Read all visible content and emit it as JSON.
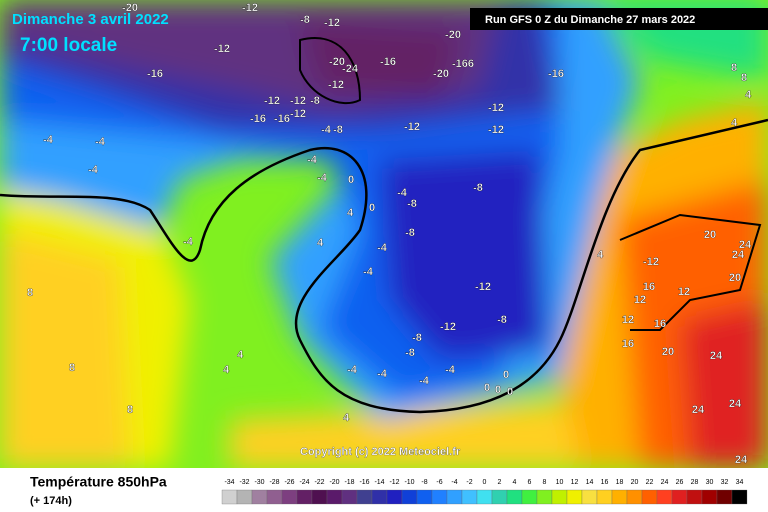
{
  "header": {
    "date": "Dimanche 3 avril 2022",
    "time": "7:00 locale",
    "run": "Run GFS 0 Z du Dimanche 27 mars 2022"
  },
  "copyright": "Copyright (c) 2022 Meteociel.fr",
  "footer": {
    "title": "Température 850hPa",
    "lead": "(+ 174h)"
  },
  "map_labels": [
    "-20",
    "-12",
    "-8",
    "-12",
    "-16",
    "-12",
    "-20",
    "-24",
    "-12",
    "-16",
    "-20",
    "-166",
    "-16",
    "-20",
    "-12",
    "-12",
    "-8",
    "-12",
    "-16",
    "-16",
    "-12",
    "-12",
    "-12",
    "-4",
    "-8",
    "-4",
    "-4",
    "-4",
    "-4",
    "-4",
    "-4",
    "0",
    "4",
    "0",
    "4",
    "8",
    "8",
    "4",
    "4",
    "8",
    "4",
    "-4",
    "-8",
    "-8",
    "-4",
    "-4",
    "-8",
    "-12",
    "-12",
    "-8",
    "-8",
    "-8",
    "-4",
    "-4",
    "-4",
    "-4",
    "0",
    "0",
    "0",
    "0",
    "4",
    "-12",
    "16",
    "12",
    "12",
    "12",
    "16",
    "16",
    "20",
    "24",
    "24",
    "20",
    "20",
    "24",
    "24",
    "24",
    "24",
    "8",
    "8",
    "4",
    "4"
  ],
  "scale": {
    "ticks": [
      -34,
      -32,
      -30,
      -28,
      -26,
      -24,
      -22,
      -20,
      -18,
      -16,
      -14,
      -12,
      -10,
      -8,
      -6,
      -4,
      -2,
      0,
      2,
      4,
      6,
      8,
      10,
      12,
      14,
      16,
      18,
      20,
      22,
      24,
      26,
      28,
      30,
      32,
      34
    ],
    "colors": [
      "#d0d0d0",
      "#b4b4b4",
      "#a080a0",
      "#905f90",
      "#7d3f80",
      "#632065",
      "#4f1050",
      "#5a1a6a",
      "#603080",
      "#404090",
      "#3030a8",
      "#2020c0",
      "#1040d8",
      "#1060f0",
      "#2080ff",
      "#30a0ff",
      "#40c0ff",
      "#40e0f0",
      "#30d0b0",
      "#20e080",
      "#40f040",
      "#80f020",
      "#c0f000",
      "#f0f000",
      "#f8e040",
      "#ffd020",
      "#ffb000",
      "#ff9000",
      "#ff6000",
      "#ff4020",
      "#e02020",
      "#c01010",
      "#a00000",
      "#700000",
      "#000000"
    ]
  }
}
